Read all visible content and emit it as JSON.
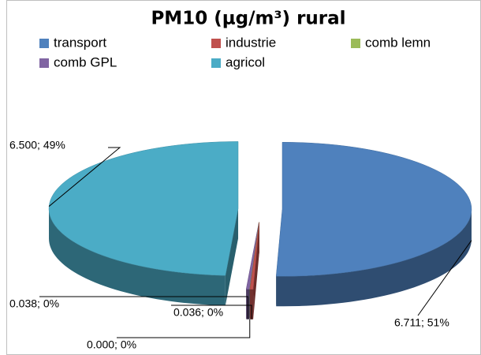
{
  "chart_data": {
    "type": "pie",
    "title": "PM10 (μg/m³) rural",
    "categories": [
      "transport",
      "industrie",
      "comb lemn",
      "comb GPL",
      "agricol"
    ],
    "values": [
      6.711,
      0.036,
      0.0,
      0.038,
      6.5
    ],
    "value_labels": [
      "6.711; 51%",
      "0.036; 0%",
      "0.000; 0%",
      "0.038; 0%",
      "6.500; 49%"
    ],
    "colors": [
      "#4f81bd",
      "#c0504d",
      "#9bbb59",
      "#8064a2",
      "#4bacc6"
    ],
    "legend": "top"
  }
}
